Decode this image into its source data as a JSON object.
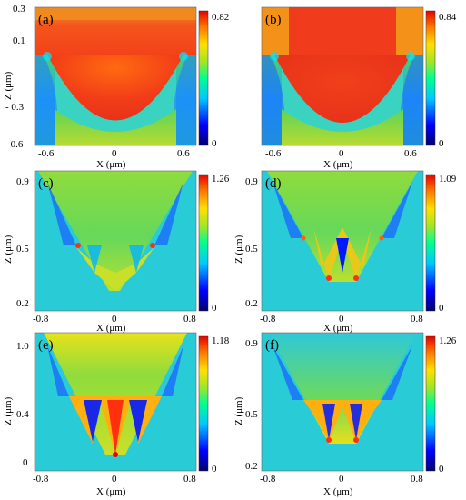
{
  "panels": [
    {
      "id": "a",
      "label": "(a)",
      "xlabel": "X (μm)",
      "ylabel": "Z (μm)",
      "xticks": [
        "-0.6",
        "0",
        "0.6"
      ],
      "yticks": [
        "0.3",
        "0.1",
        "- 0.3",
        "-0.6"
      ],
      "colorbar": {
        "max": "0.82",
        "min": "0"
      },
      "structure": "single parabolic groove"
    },
    {
      "id": "b",
      "label": "(b)",
      "xlabel": "X (μm)",
      "ylabel": "",
      "xticks": [
        "-0.6",
        "0",
        "0.6"
      ],
      "yticks": [],
      "colorbar": {
        "max": "0.84",
        "min": "0"
      },
      "structure": "single parabolic groove"
    },
    {
      "id": "c",
      "label": "(c)",
      "xlabel": "X (μm)",
      "ylabel": "Z (μm)",
      "xticks": [
        "-0.8",
        "0",
        "0.8"
      ],
      "yticks": [
        "0.9",
        "0.5",
        "0.2"
      ],
      "colorbar": {
        "max": "1.26",
        "min": "0"
      },
      "structure": "V-groove with two inner grooves"
    },
    {
      "id": "d",
      "label": "(d)",
      "xlabel": "X (μm)",
      "ylabel": "Z (μm)",
      "xticks": [
        "-0.8",
        "0",
        "0.8"
      ],
      "yticks": [
        "0.9",
        "0.5",
        "0.2"
      ],
      "colorbar": {
        "max": "1.09",
        "min": "0"
      },
      "structure": "V-groove with three inner grooves"
    },
    {
      "id": "e",
      "label": "(e)",
      "xlabel": "X (μm)",
      "ylabel": "Z (μm)",
      "xticks": [
        "-0.8",
        "0",
        "0.8"
      ],
      "yticks": [
        "1.0",
        "0.4",
        "0"
      ],
      "colorbar": {
        "max": "1.18",
        "min": "0"
      },
      "structure": "V-groove with four inner grooves"
    },
    {
      "id": "f",
      "label": "(f)",
      "xlabel": "X (μm)",
      "ylabel": "Z (μm)",
      "xticks": [
        "-0.8",
        "0",
        "0.8"
      ],
      "yticks": [
        "0.9",
        "0.5",
        "0.2"
      ],
      "colorbar": {
        "max": "1.26",
        "min": "0"
      },
      "structure": "V-groove with five inner grooves"
    }
  ],
  "colormap": [
    "#00008b",
    "#0000ff",
    "#00bfff",
    "#00ff7f",
    "#9acd32",
    "#ffff00",
    "#ff8c00",
    "#ff0000"
  ]
}
